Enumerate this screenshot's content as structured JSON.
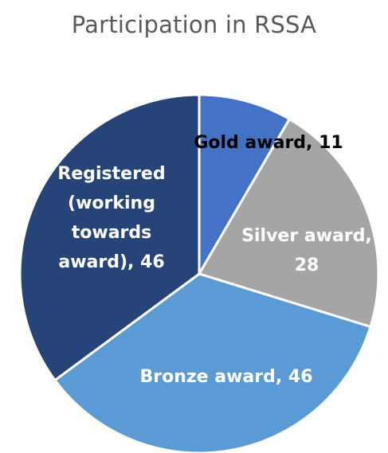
{
  "chart_data": {
    "type": "pie",
    "title": "Participation in RSSA",
    "slices": [
      {
        "label": "Gold award, 11",
        "category": "Gold award",
        "value": 11,
        "color": "#4472C4",
        "label_color": "#000000"
      },
      {
        "label": "Silver award, 28",
        "category": "Silver award",
        "value": 28,
        "color": "#A5A5A5",
        "label_color": "#FFFFFF"
      },
      {
        "label": "Bronze award, 46",
        "category": "Bronze award",
        "value": 46,
        "color": "#5B9BD5",
        "label_color": "#FFFFFF"
      },
      {
        "label": "Registered (working towards award), 46",
        "category": "Registered (working towards award)",
        "value": 46,
        "color": "#264478",
        "label_color": "#FFFFFF"
      }
    ],
    "start_angle": "12 o'clock",
    "direction": "clockwise",
    "legend": "none"
  }
}
